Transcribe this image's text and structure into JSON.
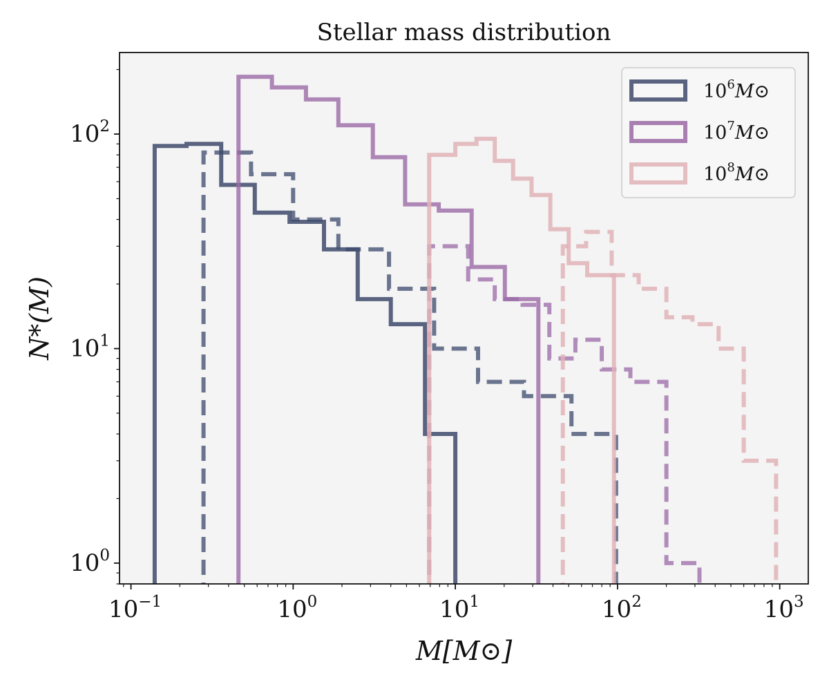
{
  "chart_data": {
    "type": "histogram-step",
    "title": "Stellar mass distribution",
    "xlabel": "M[M⊙]",
    "ylabel": "N*(M)",
    "xscale": "log",
    "yscale": "log",
    "xlim": [
      0.085,
      1500
    ],
    "ylim": [
      0.8,
      240
    ],
    "grid": false,
    "legend_position": "top-right",
    "x_ticks": [
      {
        "value": 0.1,
        "base": "10",
        "exp": "−1"
      },
      {
        "value": 1,
        "base": "10",
        "exp": "0"
      },
      {
        "value": 10,
        "base": "10",
        "exp": "1"
      },
      {
        "value": 100,
        "base": "10",
        "exp": "2"
      },
      {
        "value": 1000,
        "base": "10",
        "exp": "3"
      }
    ],
    "y_ticks": [
      {
        "value": 1,
        "base": "10",
        "exp": "0"
      },
      {
        "value": 10,
        "base": "10",
        "exp": "1"
      },
      {
        "value": 100,
        "base": "10",
        "exp": "2"
      }
    ],
    "legend": [
      {
        "base": "10",
        "exp": "6",
        "unit": "M⊙",
        "color": "#3e4a6b"
      },
      {
        "base": "10",
        "exp": "7",
        "unit": "M⊙",
        "color": "#9b6aa6"
      },
      {
        "base": "10",
        "exp": "8",
        "unit": "M⊙",
        "color": "#e0b3b7"
      }
    ],
    "series": [
      {
        "name": "10^6 M⊙ (solid)",
        "color": "#3e4a6b",
        "alpha": 0.85,
        "dash": false,
        "edges": [
          0.14,
          0.22,
          0.36,
          0.58,
          0.95,
          1.55,
          2.5,
          4.0,
          6.5,
          10.0
        ],
        "counts": [
          88,
          90,
          58,
          43,
          39,
          29,
          17,
          13,
          4
        ]
      },
      {
        "name": "10^6 M⊙ (dashed)",
        "color": "#3e4a6b",
        "alpha": 0.75,
        "dash": true,
        "edges": [
          0.28,
          0.55,
          1.0,
          1.9,
          3.9,
          7.4,
          13.8,
          26.5,
          52,
          98
        ],
        "counts": [
          82,
          65,
          40,
          29,
          19,
          10,
          7,
          6,
          4
        ]
      },
      {
        "name": "10^7 M⊙ (solid)",
        "color": "#9b6aa6",
        "alpha": 0.8,
        "dash": false,
        "edges": [
          0.46,
          0.74,
          1.2,
          1.9,
          3.1,
          4.9,
          7.9,
          12.6,
          20.2,
          32.5
        ],
        "counts": [
          185,
          165,
          145,
          110,
          78,
          47,
          44,
          24,
          17
        ]
      },
      {
        "name": "10^7 M⊙ (dashed)",
        "color": "#9b6aa6",
        "alpha": 0.75,
        "dash": true,
        "edges": [
          6.9,
          12.0,
          17.5,
          26.0,
          38.0,
          55.0,
          80.0,
          120.0,
          200.0,
          320.0
        ],
        "counts": [
          30,
          21,
          17,
          16,
          9,
          11,
          8,
          7,
          1
        ]
      },
      {
        "name": "10^8 M⊙ (solid)",
        "color": "#e0b3b7",
        "alpha": 0.85,
        "dash": false,
        "edges": [
          6.9,
          10.0,
          13.5,
          17.5,
          22.7,
          29.5,
          38.5,
          50.0,
          65.0,
          85.0,
          95.0
        ],
        "counts": [
          80,
          90,
          95,
          75,
          62,
          52,
          36,
          25,
          22,
          22
        ]
      },
      {
        "name": "10^8 M⊙ (dashed)",
        "color": "#e0b3b7",
        "alpha": 0.85,
        "dash": true,
        "edges": [
          46,
          64,
          92,
          135,
          200,
          290,
          420,
          600,
          950
        ],
        "counts": [
          30,
          35,
          22,
          19,
          14,
          13,
          10,
          3
        ]
      }
    ]
  }
}
